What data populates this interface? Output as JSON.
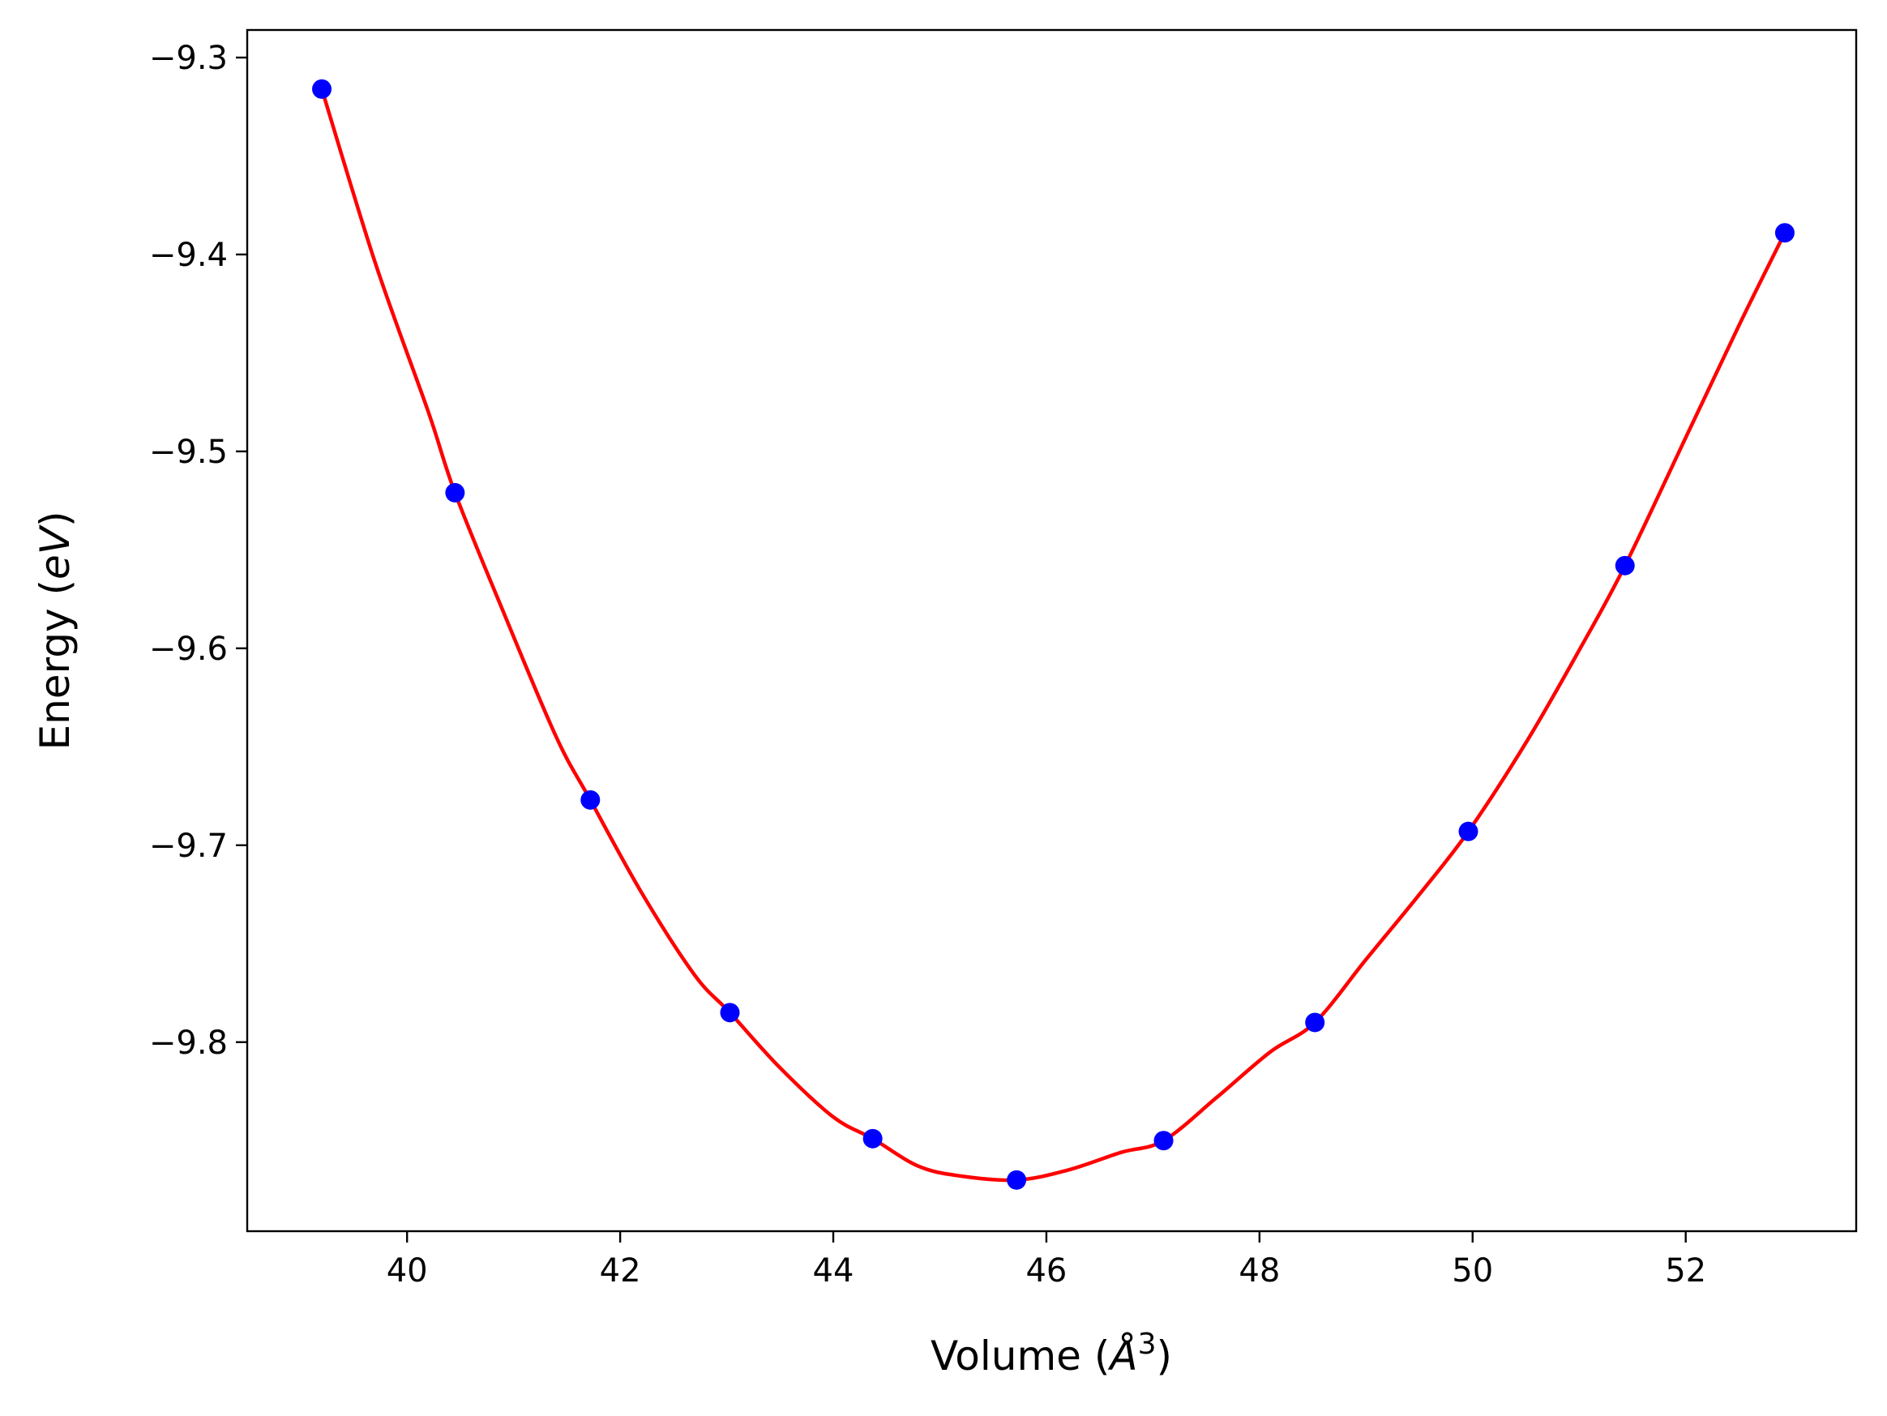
{
  "chart_data": {
    "type": "scatter",
    "xlabel_prefix": "Volume (",
    "xlabel_unit": "Å",
    "xlabel_exp": "3",
    "xlabel_suffix": ")",
    "ylabel_prefix": "Energy (",
    "ylabel_unit": "eV",
    "ylabel_suffix": ")",
    "xlim": [
      38.5,
      53.6
    ],
    "ylim": [
      -9.896,
      -9.286
    ],
    "x_ticks": [
      40,
      42,
      44,
      46,
      48,
      50,
      52
    ],
    "y_ticks": [
      -9.3,
      -9.4,
      -9.5,
      -9.6,
      -9.7,
      -9.8
    ],
    "x_tick_labels": [
      "40",
      "42",
      "44",
      "46",
      "48",
      "50",
      "52"
    ],
    "y_tick_labels": [
      "−9.3",
      "−9.4",
      "−9.5",
      "−9.6",
      "−9.7",
      "−9.8"
    ],
    "grid": false,
    "series": [
      {
        "kind": "points",
        "color": "#0000ff",
        "x": [
          39.2,
          40.45,
          41.72,
          43.03,
          44.37,
          45.72,
          47.1,
          48.52,
          49.96,
          51.43,
          52.93
        ],
        "y": [
          -9.316,
          -9.521,
          -9.677,
          -9.785,
          -9.849,
          -9.87,
          -9.85,
          -9.79,
          -9.693,
          -9.558,
          -9.389
        ]
      },
      {
        "kind": "fit-curve",
        "color": "#ff0000",
        "x": [
          39.2,
          39.7,
          40.2,
          40.45,
          40.9,
          41.4,
          41.72,
          42.2,
          42.7,
          43.03,
          43.5,
          44.0,
          44.37,
          44.8,
          45.2,
          45.72,
          46.2,
          46.7,
          47.1,
          47.6,
          48.1,
          48.52,
          49.0,
          49.5,
          49.96,
          50.5,
          51.0,
          51.43,
          52.0,
          52.5,
          52.93
        ],
        "y": [
          -9.316,
          -9.404,
          -9.48,
          -9.521,
          -9.581,
          -9.645,
          -9.677,
          -9.724,
          -9.766,
          -9.785,
          -9.813,
          -9.838,
          -9.849,
          -9.863,
          -9.868,
          -9.87,
          -9.865,
          -9.856,
          -9.85,
          -9.828,
          -9.805,
          -9.79,
          -9.758,
          -9.725,
          -9.693,
          -9.648,
          -9.601,
          -9.558,
          -9.493,
          -9.436,
          -9.389
        ]
      }
    ]
  }
}
